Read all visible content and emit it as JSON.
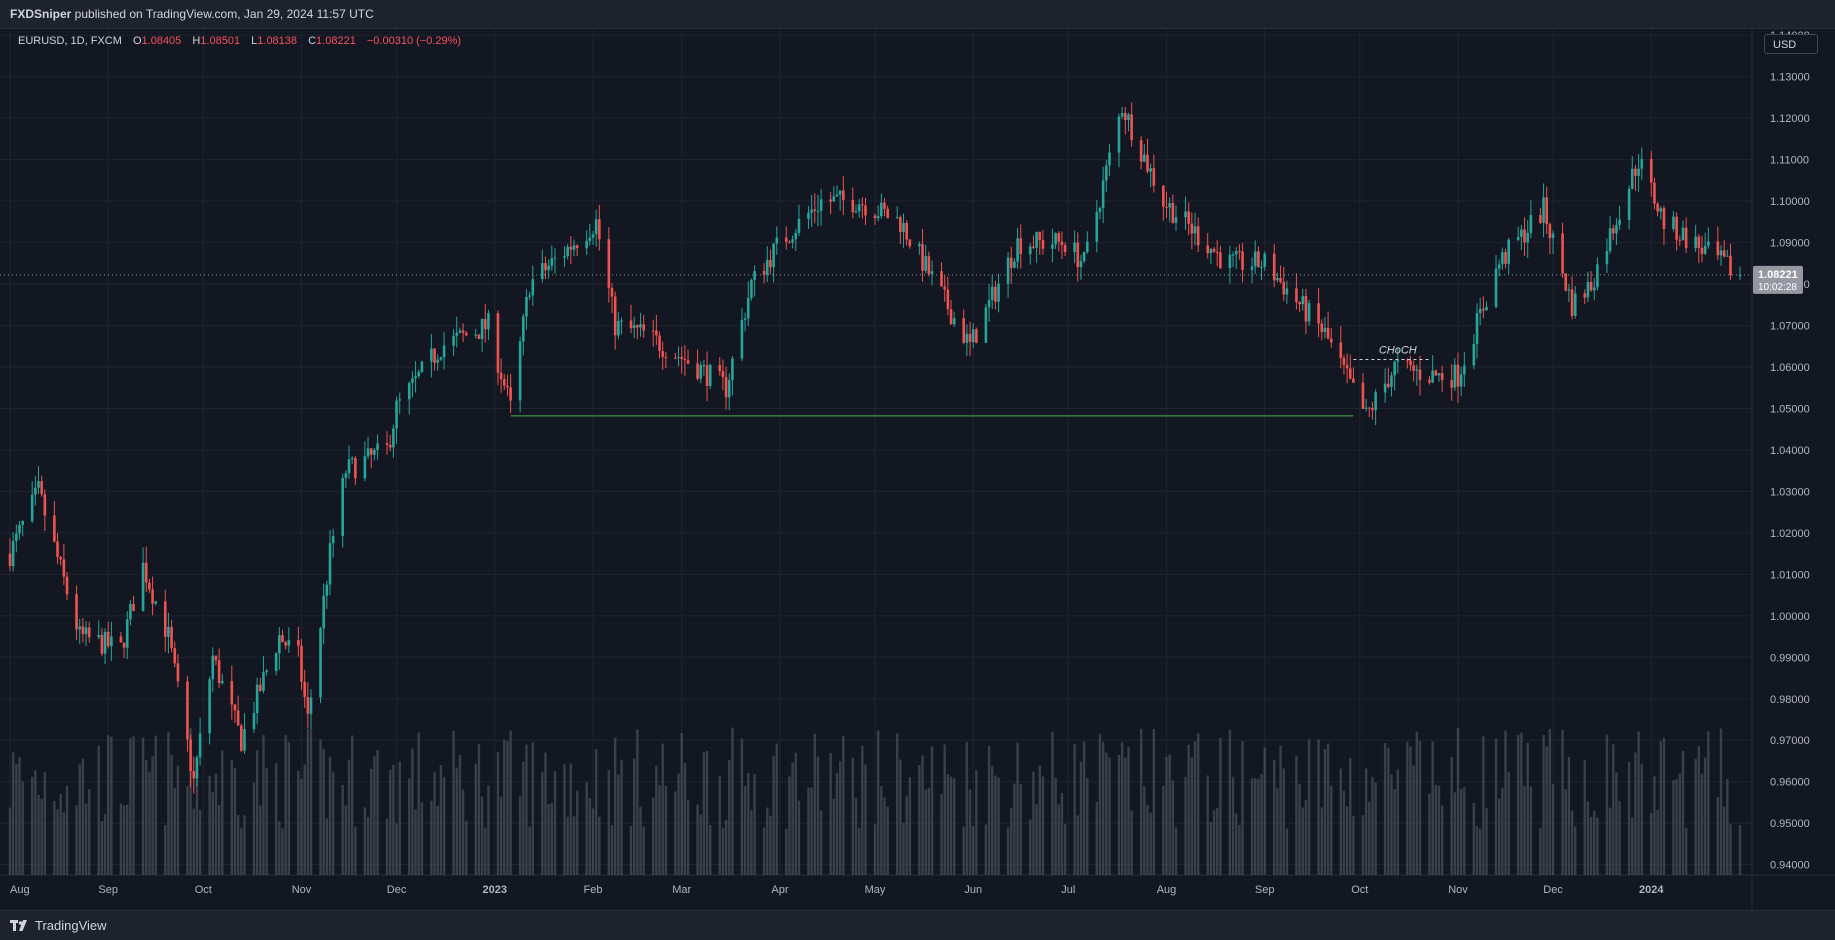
{
  "header": {
    "author": "FXDSniper",
    "published_text": " published on TradingView.com, Jan 29, 2024 11:57 UTC"
  },
  "legend": {
    "symbol": "EURUSD, 1D, FXCM",
    "open_label": "O",
    "open": "1.08405",
    "high_label": "H",
    "high": "1.08501",
    "low_label": "L",
    "low": "1.08138",
    "close_label": "C",
    "close": "1.08221",
    "change": "−0.00310 (−0.29%)"
  },
  "currency_button": "USD",
  "footer": {
    "brand": "TradingView"
  },
  "colors": {
    "background": "#131722",
    "grid": "#1f2430",
    "up": "#26a69a",
    "down": "#ef5350",
    "volume": "#5d606b",
    "level_line": "#4caf50",
    "text": "#d1d4dc",
    "price_label_bg": "#9598a1"
  },
  "chart_data": {
    "type": "candlestick",
    "symbol": "EURUSD",
    "timeframe": "1D",
    "y_axis": {
      "ticks": [
        "1.14000",
        "1.13000",
        "1.12000",
        "1.11000",
        "1.10000",
        "1.09000",
        "1.08000",
        "1.07000",
        "1.06000",
        "1.05000",
        "1.04000",
        "1.03000",
        "1.02000",
        "1.01000",
        "1.00000",
        "0.99000",
        "0.98000",
        "0.97000",
        "0.96000",
        "0.95000",
        "0.94000"
      ],
      "range": [
        0.9375,
        1.1415
      ]
    },
    "x_axis": {
      "ticks": [
        "Aug",
        "Sep",
        "Oct",
        "Nov",
        "Dec",
        "2023",
        "Feb",
        "Mar",
        "Apr",
        "May",
        "Jun",
        "Jul",
        "Aug",
        "Sep",
        "Oct",
        "Nov",
        "Dec",
        "2024"
      ],
      "range": [
        "2022-08-01",
        "2024-01-29"
      ]
    },
    "current_price": {
      "value": 1.08221,
      "label": "1.08221",
      "countdown": "10:02:28"
    },
    "price_path": [
      [
        "2022-08-01",
        1.015
      ],
      [
        "2022-08-10",
        1.03
      ],
      [
        "2022-08-23",
        0.995
      ],
      [
        "2022-09-05",
        0.992
      ],
      [
        "2022-09-12",
        1.012
      ],
      [
        "2022-09-20",
        0.995
      ],
      [
        "2022-09-28",
        0.96
      ],
      [
        "2022-10-04",
        0.99
      ],
      [
        "2022-10-13",
        0.97
      ],
      [
        "2022-10-25",
        0.995
      ],
      [
        "2022-10-31",
        0.99
      ],
      [
        "2022-11-03",
        0.975
      ],
      [
        "2022-11-10",
        1.015
      ],
      [
        "2022-11-15",
        1.035
      ],
      [
        "2022-11-28",
        1.04
      ],
      [
        "2022-12-01",
        1.05
      ],
      [
        "2022-12-15",
        1.065
      ],
      [
        "2022-12-30",
        1.07
      ],
      [
        "2023-01-06",
        1.05
      ],
      [
        "2023-01-12",
        1.08
      ],
      [
        "2023-01-26",
        1.09
      ],
      [
        "2023-02-02",
        1.095
      ],
      [
        "2023-02-08",
        1.07
      ],
      [
        "2023-02-17",
        1.068
      ],
      [
        "2023-03-06",
        1.06
      ],
      [
        "2023-03-15",
        1.055
      ],
      [
        "2023-03-23",
        1.08
      ],
      [
        "2023-04-01",
        1.09
      ],
      [
        "2023-04-14",
        1.1
      ],
      [
        "2023-04-26",
        1.1
      ],
      [
        "2023-05-09",
        1.095
      ],
      [
        "2023-05-31",
        1.065
      ],
      [
        "2023-06-15",
        1.09
      ],
      [
        "2023-06-30",
        1.09
      ],
      [
        "2023-07-06",
        1.085
      ],
      [
        "2023-07-18",
        1.123
      ],
      [
        "2023-07-31",
        1.1
      ],
      [
        "2023-08-20",
        1.085
      ],
      [
        "2023-09-01",
        1.085
      ],
      [
        "2023-09-20",
        1.068
      ],
      [
        "2023-10-03",
        1.048
      ],
      [
        "2023-10-12",
        1.06
      ],
      [
        "2023-10-24",
        1.058
      ],
      [
        "2023-11-01",
        1.058
      ],
      [
        "2023-11-14",
        1.085
      ],
      [
        "2023-11-28",
        1.098
      ],
      [
        "2023-12-07",
        1.075
      ],
      [
        "2023-12-13",
        1.08
      ],
      [
        "2023-12-28",
        1.11
      ],
      [
        "2024-01-05",
        1.095
      ],
      [
        "2024-01-29",
        1.082
      ]
    ],
    "volume_range": [
      0,
      1
    ],
    "annotations": [
      {
        "type": "horizontal_line",
        "from": "2023-01-06",
        "to": "2023-09-29",
        "price": 1.0482,
        "color": "#4caf50"
      },
      {
        "type": "label",
        "text": "CHoCH",
        "date": "2023-10-13",
        "price": 1.0625,
        "dashed_from": "2023-09-29",
        "dashed_to": "2023-10-23",
        "dashed_price": 1.0618
      }
    ]
  }
}
